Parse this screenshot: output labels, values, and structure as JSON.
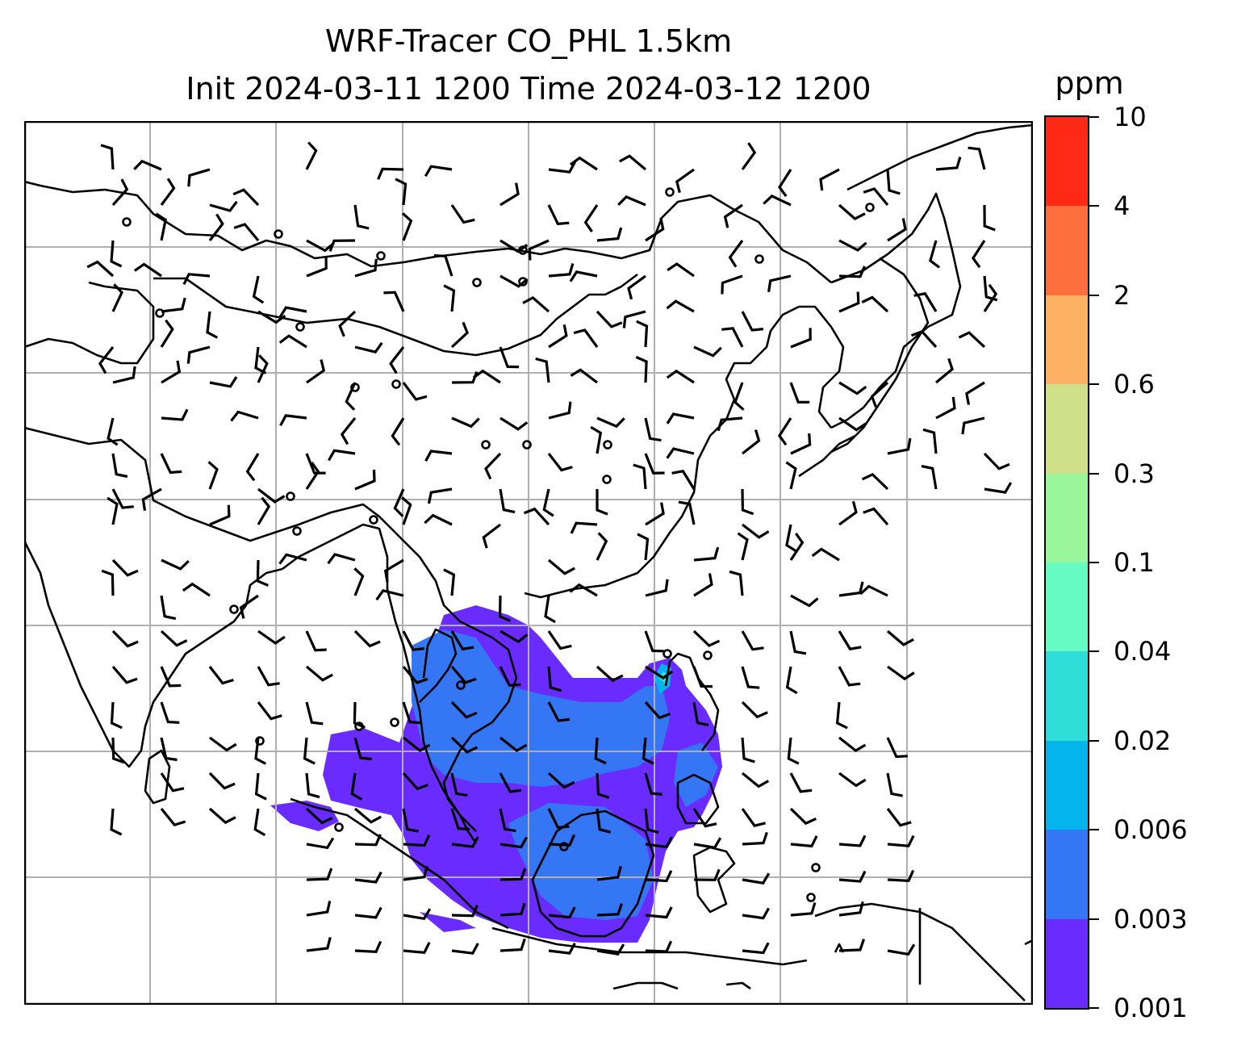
{
  "title": {
    "line1": "WRF-Tracer CO_PHL 1.5km",
    "line2": "Init 2024-03-11 1200 Time 2024-03-12 1200"
  },
  "colorbar": {
    "unit": "ppm",
    "levels": [
      "0.001",
      "0.003",
      "0.006",
      "0.02",
      "0.04",
      "0.1",
      "0.3",
      "0.6",
      "2",
      "4",
      "10"
    ],
    "colors": [
      "#6a2bff",
      "#3476f4",
      "#04b4eb",
      "#2edcd8",
      "#66fbc2",
      "#9af69a",
      "#d0e08a",
      "#fdb162",
      "#ff6f3e",
      "#ff2a15"
    ]
  },
  "map": {
    "grid_color": "#b0b0b0",
    "coastline_color": "#000000",
    "tracer_field_max_level": "0.02"
  },
  "icons": {
    "wind_barbs": "wind-barb-icon",
    "calm_wind": "calm-wind-circle-icon"
  }
}
